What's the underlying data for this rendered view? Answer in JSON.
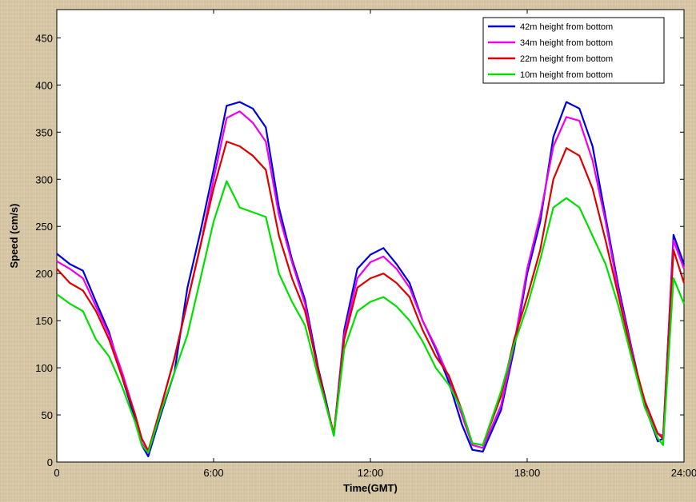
{
  "chart_data": {
    "type": "line",
    "xlabel": "Time(GMT)",
    "ylabel": "Speed (cm/s)",
    "xlim": [
      0,
      24
    ],
    "ylim": [
      0,
      480
    ],
    "xticks": [
      0,
      6,
      12,
      18,
      24
    ],
    "xtick_labels": [
      "0",
      "6:00",
      "12:00",
      "18:00",
      "24:00"
    ],
    "yticks": [
      0,
      50,
      100,
      150,
      200,
      250,
      300,
      350,
      400,
      450
    ],
    "ytick_labels": [
      "0",
      "50",
      "100",
      "150",
      "200",
      "250",
      "300",
      "350",
      "400",
      "450"
    ],
    "grid": false,
    "legend_position": "top-right",
    "x": [
      0,
      0.5,
      1,
      1.5,
      2,
      2.5,
      3,
      3.25,
      3.5,
      4,
      4.5,
      5,
      5.5,
      6,
      6.5,
      7,
      7.5,
      8,
      8.5,
      9,
      9.5,
      10,
      10.3,
      10.6,
      11,
      11.5,
      12,
      12.5,
      13,
      13.5,
      14,
      14.5,
      15,
      15.5,
      15.9,
      16.3,
      17,
      17.5,
      18,
      18.5,
      19,
      19.5,
      20,
      20.5,
      21,
      21.5,
      22,
      22.5,
      23,
      23.2,
      23.6,
      24
    ],
    "series": [
      {
        "name": "42m height from bottom",
        "color": "#0000dd",
        "values": [
          221,
          210,
          203,
          170,
          138,
          90,
          45,
          18,
          6,
          52,
          95,
          185,
          245,
          310,
          378,
          382,
          375,
          355,
          270,
          215,
          172,
          100,
          65,
          28,
          140,
          205,
          220,
          227,
          210,
          190,
          150,
          120,
          85,
          40,
          13,
          11,
          55,
          120,
          200,
          255,
          345,
          382,
          375,
          335,
          260,
          185,
          120,
          60,
          22,
          25,
          241,
          210
        ]
      },
      {
        "name": "34m height from bottom",
        "color": "#ee00ee",
        "values": [
          213,
          205,
          195,
          165,
          135,
          95,
          50,
          20,
          10,
          60,
          110,
          170,
          230,
          300,
          365,
          372,
          360,
          340,
          262,
          212,
          168,
          95,
          60,
          30,
          135,
          195,
          212,
          218,
          205,
          185,
          150,
          122,
          90,
          50,
          18,
          15,
          60,
          125,
          205,
          262,
          335,
          366,
          362,
          320,
          255,
          180,
          118,
          58,
          30,
          28,
          235,
          205
        ]
      },
      {
        "name": "22m height from bottom",
        "color": "#dd0000",
        "values": [
          205,
          190,
          182,
          160,
          130,
          90,
          50,
          25,
          12,
          60,
          110,
          170,
          230,
          290,
          340,
          335,
          325,
          310,
          240,
          195,
          160,
          98,
          62,
          30,
          130,
          185,
          195,
          200,
          190,
          175,
          140,
          112,
          92,
          55,
          20,
          18,
          70,
          130,
          175,
          225,
          300,
          333,
          325,
          290,
          235,
          175,
          115,
          65,
          30,
          25,
          225,
          190
        ]
      },
      {
        "name": "10m height from bottom",
        "color": "#00e000",
        "values": [
          178,
          168,
          160,
          130,
          112,
          80,
          42,
          18,
          10,
          55,
          95,
          135,
          195,
          255,
          298,
          270,
          265,
          260,
          200,
          170,
          145,
          90,
          60,
          28,
          120,
          160,
          170,
          175,
          165,
          150,
          128,
          100,
          82,
          55,
          20,
          18,
          75,
          125,
          165,
          215,
          270,
          280,
          270,
          240,
          210,
          165,
          110,
          58,
          25,
          18,
          195,
          168
        ]
      }
    ]
  }
}
